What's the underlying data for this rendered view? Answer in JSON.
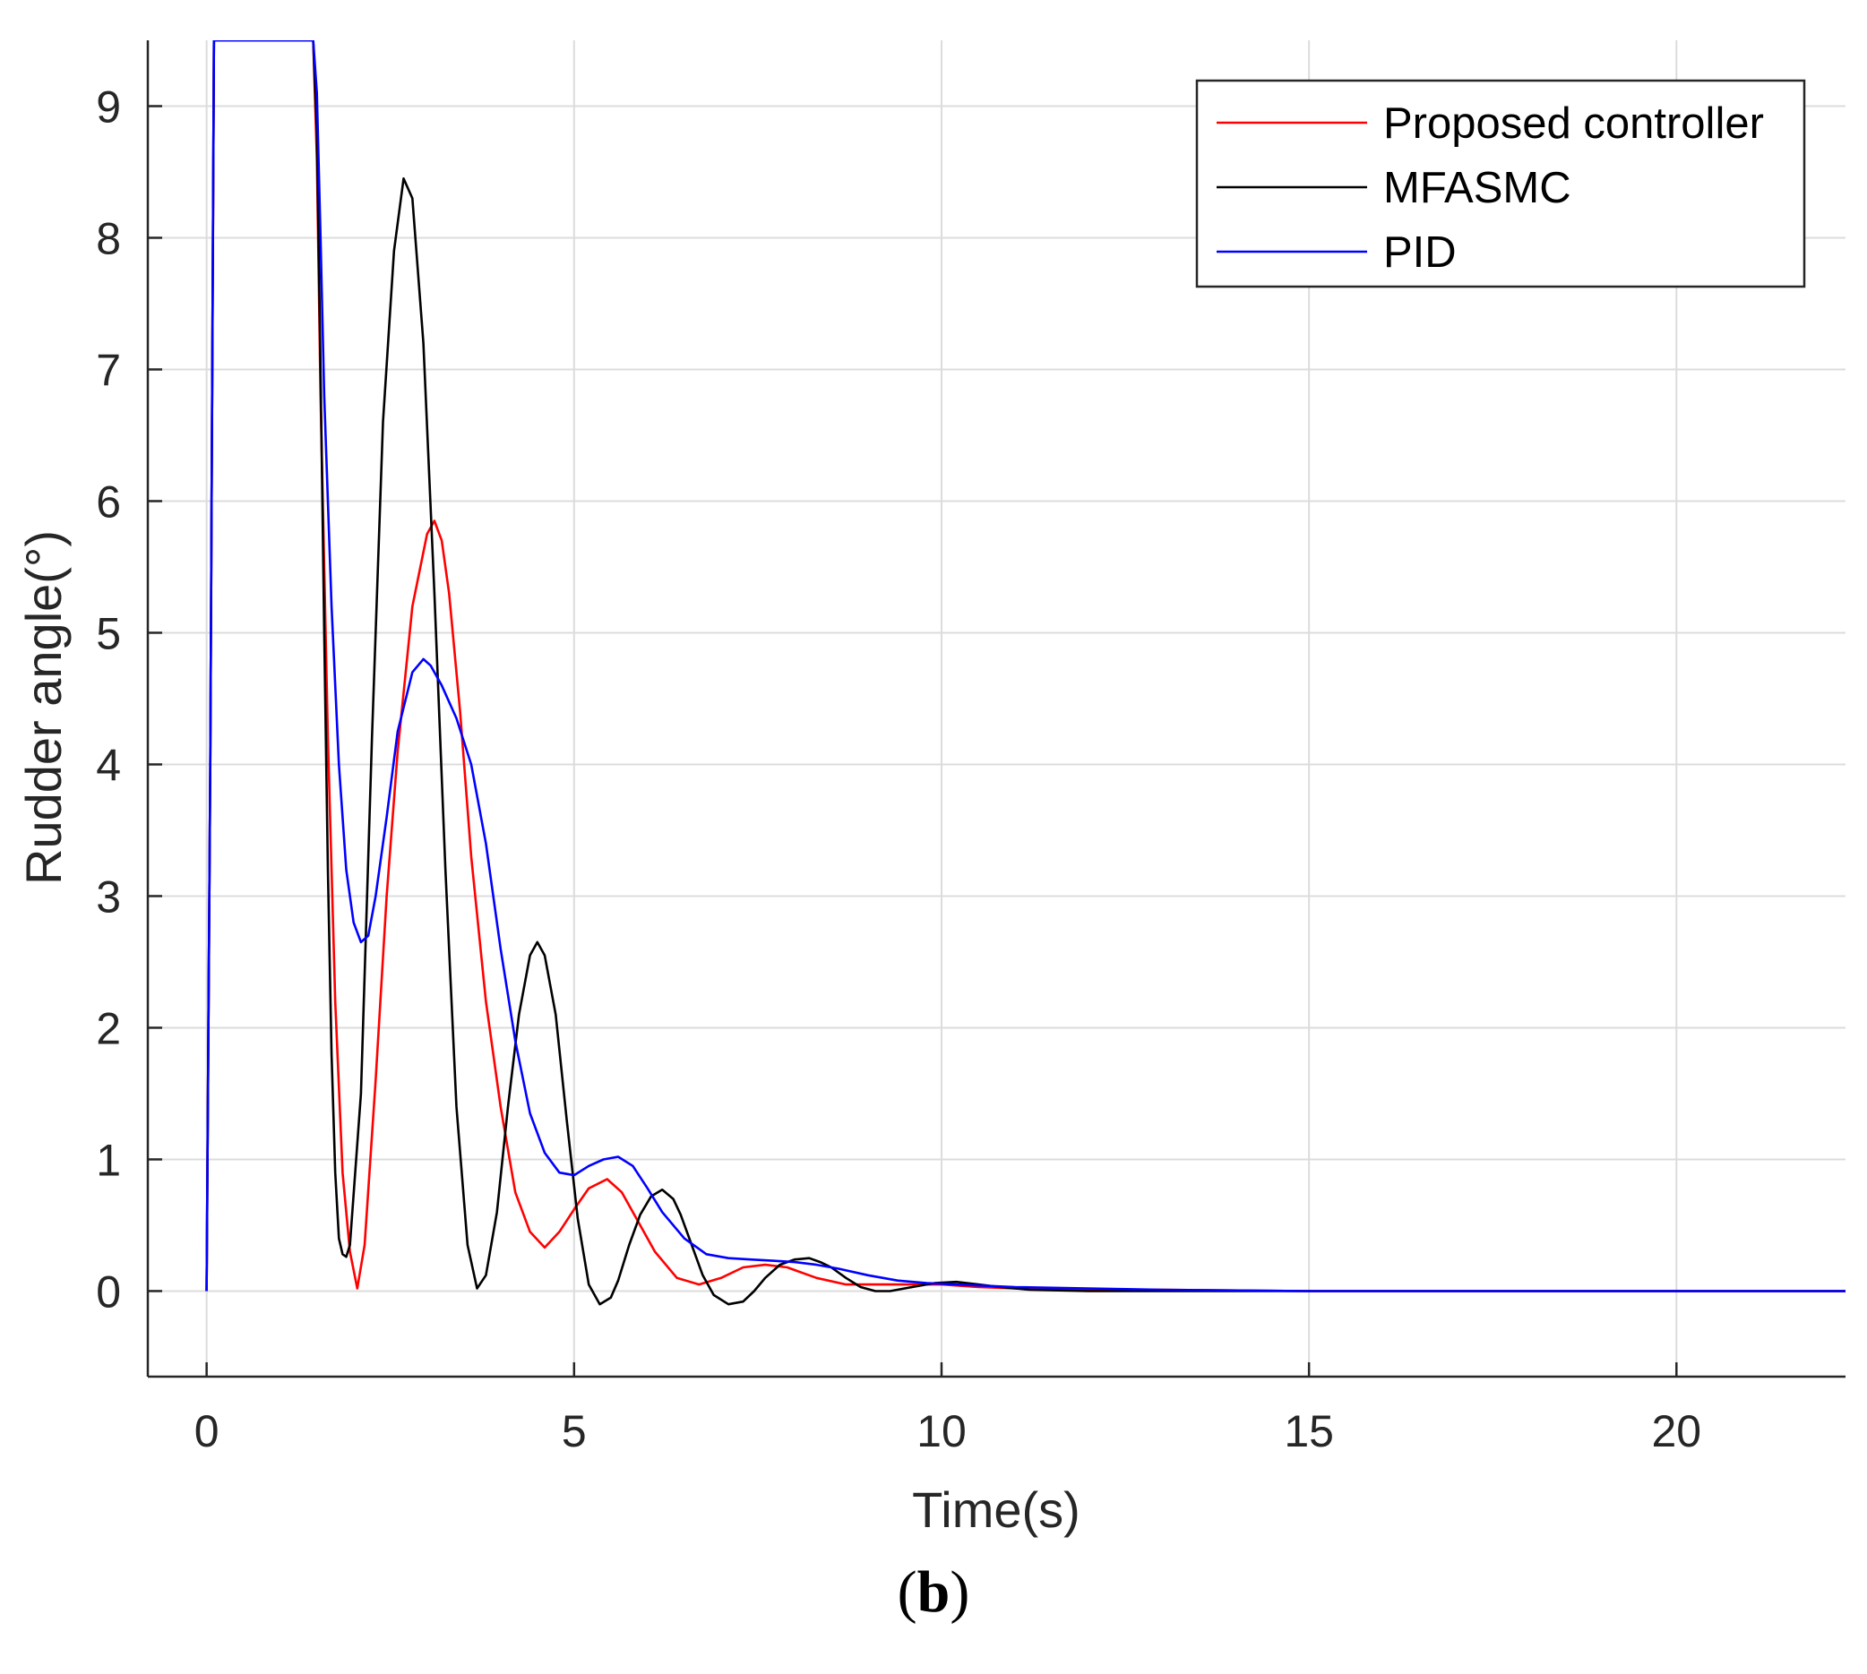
{
  "chart_data": {
    "type": "line",
    "xlabel": "Time(s)",
    "ylabel": "Rudder angle(°)",
    "xlim": [
      -0.8,
      22.3
    ],
    "ylim": [
      -0.65,
      9.5
    ],
    "xticks": [
      0,
      5,
      10,
      15,
      20
    ],
    "yticks": [
      0,
      1,
      2,
      3,
      4,
      5,
      6,
      7,
      8,
      9
    ],
    "grid": true,
    "legend_position": "top-right",
    "series": [
      {
        "name": "Proposed controller",
        "color": "#ff0000",
        "x": [
          0,
          0.05,
          0.1,
          0.15,
          0.2,
          1.4,
          1.45,
          1.5,
          1.55,
          1.65,
          1.75,
          1.85,
          1.95,
          2.05,
          2.15,
          2.3,
          2.45,
          2.6,
          2.8,
          3.0,
          3.1,
          3.2,
          3.3,
          3.45,
          3.6,
          3.8,
          4.0,
          4.2,
          4.4,
          4.6,
          4.8,
          5.0,
          5.2,
          5.45,
          5.65,
          5.85,
          6.1,
          6.4,
          6.7,
          7.0,
          7.3,
          7.6,
          7.9,
          8.3,
          8.7,
          9.1,
          9.5,
          10.0,
          10.5,
          11.0,
          12.0,
          13.0,
          15.0,
          18.0,
          22.3
        ],
        "y": [
          0,
          4,
          9.5,
          9.5,
          9.5,
          9.5,
          9.5,
          8.6,
          6.8,
          4.2,
          2.2,
          0.9,
          0.3,
          0.02,
          0.35,
          1.6,
          3.0,
          4.1,
          5.2,
          5.75,
          5.85,
          5.7,
          5.3,
          4.4,
          3.3,
          2.2,
          1.4,
          0.75,
          0.45,
          0.33,
          0.45,
          0.62,
          0.78,
          0.85,
          0.75,
          0.55,
          0.3,
          0.1,
          0.05,
          0.1,
          0.18,
          0.2,
          0.18,
          0.1,
          0.05,
          0.05,
          0.05,
          0.05,
          0.03,
          0.02,
          0.01,
          0.01,
          0.0,
          0.0,
          0.0
        ]
      },
      {
        "name": "MFASMC",
        "color": "#000000",
        "x": [
          0,
          0.05,
          0.1,
          0.15,
          0.2,
          1.4,
          1.45,
          1.5,
          1.55,
          1.6,
          1.65,
          1.7,
          1.75,
          1.8,
          1.85,
          1.9,
          1.95,
          2.1,
          2.25,
          2.4,
          2.55,
          2.68,
          2.8,
          2.95,
          3.1,
          3.25,
          3.4,
          3.55,
          3.68,
          3.8,
          3.95,
          4.1,
          4.25,
          4.4,
          4.5,
          4.6,
          4.75,
          4.9,
          5.05,
          5.2,
          5.35,
          5.5,
          5.6,
          5.75,
          5.9,
          6.05,
          6.2,
          6.35,
          6.45,
          6.6,
          6.75,
          6.9,
          7.1,
          7.3,
          7.45,
          7.6,
          7.8,
          8.0,
          8.2,
          8.35,
          8.5,
          8.7,
          8.9,
          9.1,
          9.3,
          9.6,
          9.9,
          10.2,
          10.5,
          10.8,
          11.2,
          12.0,
          13.0,
          15.0,
          18.0,
          22.3
        ],
        "y": [
          0,
          4,
          9.5,
          9.5,
          9.5,
          9.5,
          9.5,
          8.8,
          7.0,
          5.0,
          3.2,
          1.8,
          0.9,
          0.4,
          0.28,
          0.26,
          0.35,
          1.5,
          4.2,
          6.6,
          7.9,
          8.45,
          8.3,
          7.2,
          5.3,
          3.2,
          1.4,
          0.35,
          0.02,
          0.12,
          0.6,
          1.4,
          2.1,
          2.55,
          2.65,
          2.55,
          2.1,
          1.3,
          0.55,
          0.05,
          -0.1,
          -0.05,
          0.08,
          0.35,
          0.58,
          0.72,
          0.77,
          0.7,
          0.58,
          0.35,
          0.12,
          -0.03,
          -0.1,
          -0.08,
          0.0,
          0.1,
          0.2,
          0.24,
          0.25,
          0.22,
          0.18,
          0.1,
          0.03,
          0.0,
          0.0,
          0.03,
          0.06,
          0.07,
          0.05,
          0.03,
          0.01,
          0.0,
          0.0,
          0.0,
          0.0,
          0.0
        ]
      },
      {
        "name": "PID",
        "color": "#0000ff",
        "x": [
          0,
          0.05,
          0.1,
          0.15,
          0.2,
          1.4,
          1.45,
          1.5,
          1.55,
          1.6,
          1.7,
          1.8,
          1.9,
          2.0,
          2.1,
          2.2,
          2.3,
          2.45,
          2.6,
          2.8,
          2.95,
          3.05,
          3.2,
          3.4,
          3.6,
          3.8,
          4.0,
          4.2,
          4.4,
          4.6,
          4.8,
          5.0,
          5.2,
          5.4,
          5.6,
          5.8,
          6.0,
          6.2,
          6.5,
          6.8,
          7.1,
          7.4,
          7.7,
          8.0,
          8.3,
          8.6,
          9.0,
          9.4,
          9.8,
          10.2,
          10.6,
          11.0,
          12.0,
          13.0,
          15.0,
          18.0,
          22.3
        ],
        "y": [
          0,
          4,
          9.5,
          9.5,
          9.5,
          9.5,
          9.5,
          9.1,
          8.0,
          6.8,
          5.2,
          4.0,
          3.2,
          2.8,
          2.65,
          2.7,
          3.0,
          3.6,
          4.25,
          4.7,
          4.8,
          4.75,
          4.6,
          4.35,
          4.0,
          3.4,
          2.6,
          1.9,
          1.35,
          1.05,
          0.9,
          0.88,
          0.95,
          1.0,
          1.02,
          0.95,
          0.78,
          0.6,
          0.4,
          0.28,
          0.25,
          0.24,
          0.23,
          0.22,
          0.2,
          0.17,
          0.12,
          0.08,
          0.06,
          0.05,
          0.04,
          0.03,
          0.02,
          0.01,
          0.0,
          0.0,
          0.0
        ]
      }
    ]
  },
  "caption": {
    "open": "(",
    "letter": "b",
    "close": ")"
  }
}
